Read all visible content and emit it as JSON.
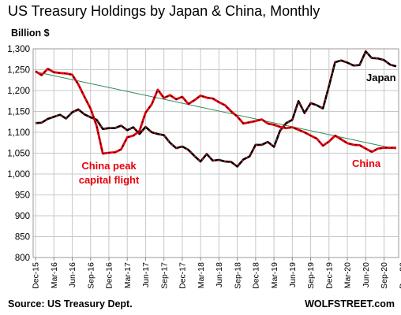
{
  "chart_data": {
    "type": "line",
    "title": "US Treasury Holdings by Japan & China, Monthly",
    "ylabel": "Billion $",
    "ylim": [
      800,
      1300
    ],
    "yticks": [
      "800",
      "850",
      "900",
      "950",
      "1,000",
      "1,050",
      "1,100",
      "1,150",
      "1,200",
      "1,250",
      "1,300"
    ],
    "xtick_labels": [
      "Dec-15",
      "Mar-16",
      "Jun-16",
      "Sep-16",
      "Dec-16",
      "Mar-17",
      "Jun-17",
      "Sep-17",
      "Dec-17",
      "Mar-18",
      "Jun-18",
      "Sep-18",
      "Dec-18",
      "Mar-19",
      "Jun-19",
      "Sep-19",
      "Dec-19",
      "Mar-20",
      "Jun-20",
      "Sep-20",
      "Dec-20"
    ],
    "grid": true,
    "series": [
      {
        "name": "Japan",
        "color": "#000000",
        "values": [
          1122,
          1123,
          1132,
          1137,
          1142,
          1133,
          1148,
          1155,
          1143,
          1136,
          1130,
          1108,
          1110,
          1110,
          1116,
          1105,
          1112,
          1096,
          1113,
          1100,
          1096,
          1093,
          1075,
          1062,
          1066,
          1058,
          1043,
          1030,
          1048,
          1032,
          1034,
          1030,
          1029,
          1018,
          1035,
          1042,
          1070,
          1070,
          1077,
          1065,
          1104,
          1122,
          1130,
          1175,
          1146,
          1170,
          1165,
          1157,
          1211,
          1268,
          1272,
          1267,
          1260,
          1261,
          1294,
          1278,
          1277,
          1273,
          1262,
          1258
        ]
      },
      {
        "name": "China",
        "color": "#e8000d",
        "values": [
          1246,
          1237,
          1252,
          1244,
          1242,
          1241,
          1238,
          1215,
          1185,
          1157,
          1115,
          1049,
          1051,
          1052,
          1059,
          1088,
          1092,
          1103,
          1147,
          1167,
          1202,
          1182,
          1189,
          1179,
          1185,
          1168,
          1177,
          1188,
          1183,
          1181,
          1172,
          1165,
          1150,
          1138,
          1121,
          1124,
          1127,
          1131,
          1121,
          1118,
          1113,
          1110,
          1112,
          1106,
          1100,
          1092,
          1085,
          1068,
          1078,
          1092,
          1083,
          1074,
          1070,
          1069,
          1061,
          1053,
          1061,
          1063,
          1063,
          1063
        ]
      }
    ],
    "trendline": {
      "color": "#2e8b57",
      "from": 1245,
      "to": 1060
    },
    "annotations": [
      {
        "text": "China peak",
        "color": "#e8000d"
      },
      {
        "text": "capital flight",
        "color": "#e8000d"
      },
      {
        "text": "Japan",
        "color": "#000000"
      },
      {
        "text": "China",
        "color": "#e8000d"
      }
    ]
  },
  "footer": {
    "source": "Source: US Treasury Dept.",
    "brand": "WOLFSTREET.com"
  }
}
